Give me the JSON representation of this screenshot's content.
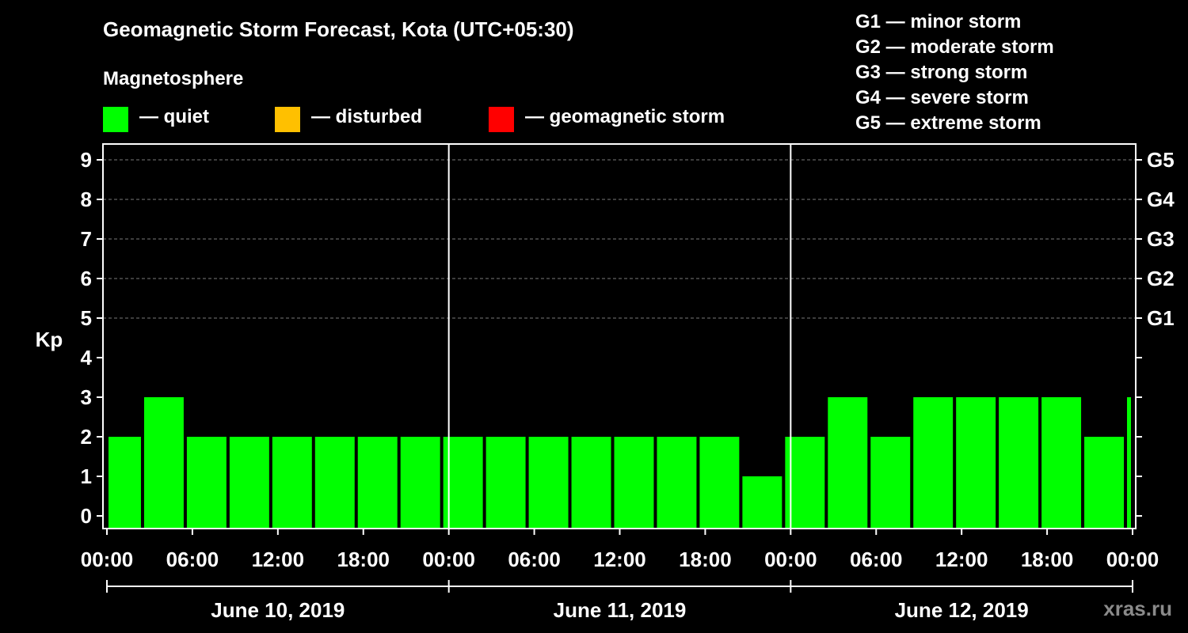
{
  "title": "Geomagnetic Storm Forecast, Kota (UTC+05:30)",
  "magnetosphere_label": "Magnetosphere",
  "legend": [
    {
      "label": "— quiet",
      "color": "#00ff00"
    },
    {
      "label": "— disturbed",
      "color": "#ffc000"
    },
    {
      "label": "— geomagnetic storm",
      "color": "#ff0000"
    }
  ],
  "g_scale": [
    "G1 — minor storm",
    "G2 — moderate storm",
    "G3 — strong storm",
    "G4 — severe storm",
    "G5 — extreme storm"
  ],
  "watermark": "xras.ru",
  "chart_data": {
    "type": "bar",
    "title": "Geomagnetic Storm Forecast, Kota (UTC+05:30)",
    "ylabel": "Kp",
    "ylim": [
      0,
      9
    ],
    "yticks": [
      "0",
      "1",
      "2",
      "3",
      "4",
      "5",
      "6",
      "7",
      "8",
      "9"
    ],
    "right_ticks": [
      {
        "kp": 5,
        "label": "G1"
      },
      {
        "kp": 6,
        "label": "G2"
      },
      {
        "kp": 7,
        "label": "G3"
      },
      {
        "kp": 8,
        "label": "G4"
      },
      {
        "kp": 9,
        "label": "G5"
      }
    ],
    "x_range_hours": [
      0,
      72
    ],
    "xtick_labels": [
      "00:00",
      "06:00",
      "12:00",
      "18:00",
      "00:00",
      "06:00",
      "12:00",
      "18:00",
      "00:00",
      "06:00",
      "12:00",
      "18:00",
      "00:00"
    ],
    "days": [
      "June 10, 2019",
      "June 11, 2019",
      "June 12, 2019"
    ],
    "bar_color": "#00ff00",
    "bars": [
      {
        "start_h": 0,
        "end_h": 2.5,
        "kp": 2
      },
      {
        "start_h": 2.5,
        "end_h": 5.5,
        "kp": 3
      },
      {
        "start_h": 5.5,
        "end_h": 8.5,
        "kp": 2
      },
      {
        "start_h": 8.5,
        "end_h": 11.5,
        "kp": 2
      },
      {
        "start_h": 11.5,
        "end_h": 14.5,
        "kp": 2
      },
      {
        "start_h": 14.5,
        "end_h": 17.5,
        "kp": 2
      },
      {
        "start_h": 17.5,
        "end_h": 20.5,
        "kp": 2
      },
      {
        "start_h": 20.5,
        "end_h": 23.5,
        "kp": 2
      },
      {
        "start_h": 23.5,
        "end_h": 26.5,
        "kp": 2
      },
      {
        "start_h": 26.5,
        "end_h": 29.5,
        "kp": 2
      },
      {
        "start_h": 29.5,
        "end_h": 32.5,
        "kp": 2
      },
      {
        "start_h": 32.5,
        "end_h": 35.5,
        "kp": 2
      },
      {
        "start_h": 35.5,
        "end_h": 38.5,
        "kp": 2
      },
      {
        "start_h": 38.5,
        "end_h": 41.5,
        "kp": 2
      },
      {
        "start_h": 41.5,
        "end_h": 44.5,
        "kp": 2
      },
      {
        "start_h": 44.5,
        "end_h": 47.5,
        "kp": 1
      },
      {
        "start_h": 47.5,
        "end_h": 50.5,
        "kp": 2
      },
      {
        "start_h": 50.5,
        "end_h": 53.5,
        "kp": 3
      },
      {
        "start_h": 53.5,
        "end_h": 56.5,
        "kp": 2
      },
      {
        "start_h": 56.5,
        "end_h": 59.5,
        "kp": 3
      },
      {
        "start_h": 59.5,
        "end_h": 62.5,
        "kp": 3
      },
      {
        "start_h": 62.5,
        "end_h": 65.5,
        "kp": 3
      },
      {
        "start_h": 65.5,
        "end_h": 68.5,
        "kp": 3
      },
      {
        "start_h": 68.5,
        "end_h": 71.5,
        "kp": 2
      },
      {
        "start_h": 71.5,
        "end_h": 72,
        "kp": 3
      }
    ]
  }
}
